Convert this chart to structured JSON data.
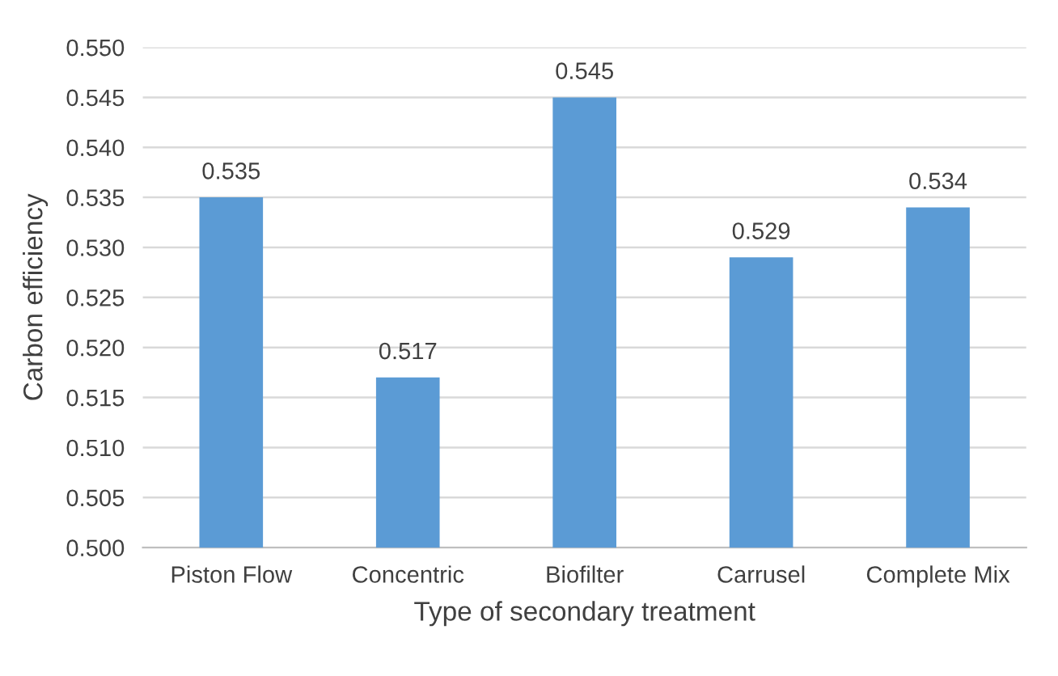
{
  "chart_data": {
    "type": "bar",
    "xlabel": "Type of secondary treatment",
    "ylabel": "Carbon efficiency",
    "categories": [
      "Piston Flow",
      "Concentric",
      "Biofilter",
      "Carrusel",
      "Complete Mix"
    ],
    "values": [
      0.535,
      0.517,
      0.545,
      0.529,
      0.534
    ],
    "color": "#5b9bd5",
    "ylim": [
      0.5,
      0.55
    ],
    "yticks": [
      {
        "value": 0.5,
        "label": "0.500"
      },
      {
        "value": 0.505,
        "label": "0.505"
      },
      {
        "value": 0.51,
        "label": "0.510"
      },
      {
        "value": 0.515,
        "label": "0.515"
      },
      {
        "value": 0.52,
        "label": "0.520"
      },
      {
        "value": 0.525,
        "label": "0.525"
      },
      {
        "value": 0.53,
        "label": "0.530"
      },
      {
        "value": 0.535,
        "label": "0.535"
      },
      {
        "value": 0.54,
        "label": "0.540"
      },
      {
        "value": 0.545,
        "label": "0.545"
      },
      {
        "value": 0.55,
        "label": "0.550"
      }
    ],
    "grid": "y",
    "data_labels": true
  }
}
